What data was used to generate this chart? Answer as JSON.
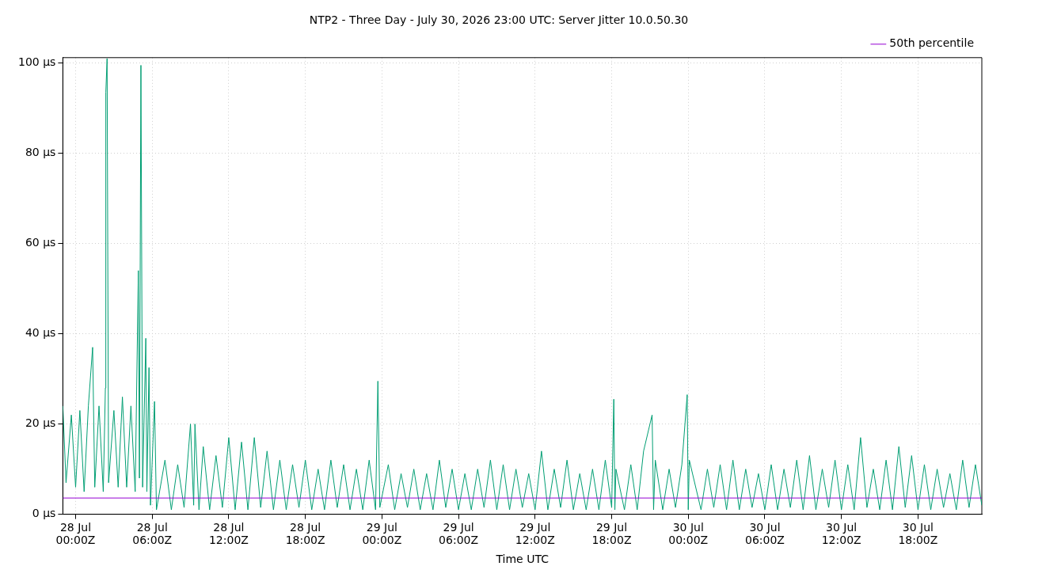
{
  "chart_data": {
    "type": "line",
    "title": "NTP2 - Three Day - July 30, 2026 23:00 UTC: Server Jitter 10.0.50.30",
    "xlabel": "Time UTC",
    "xlim": [
      "2026-07-27T23:00",
      "2026-07-30T23:00"
    ],
    "xticks": [
      {
        "value": "2026-07-28T00:00",
        "label": "28 Jul 00:00Z"
      },
      {
        "value": "2026-07-28T06:00",
        "label": "28 Jul 06:00Z"
      },
      {
        "value": "2026-07-28T12:00",
        "label": "28 Jul 12:00Z"
      },
      {
        "value": "2026-07-28T18:00",
        "label": "28 Jul 18:00Z"
      },
      {
        "value": "2026-07-29T00:00",
        "label": "29 Jul 00:00Z"
      },
      {
        "value": "2026-07-29T06:00",
        "label": "29 Jul 06:00Z"
      },
      {
        "value": "2026-07-29T12:00",
        "label": "29 Jul 12:00Z"
      },
      {
        "value": "2026-07-29T18:00",
        "label": "29 Jul 18:00Z"
      },
      {
        "value": "2026-07-30T00:00",
        "label": "30 Jul 00:00Z"
      },
      {
        "value": "2026-07-30T06:00",
        "label": "30 Jul 06:00Z"
      },
      {
        "value": "2026-07-30T12:00",
        "label": "30 Jul 12:00Z"
      },
      {
        "value": "2026-07-30T18:00",
        "label": "30 Jul 18:00Z"
      }
    ],
    "ylim": [
      0,
      101.2
    ],
    "yticks": [
      {
        "value": 0,
        "label": "0 µs"
      },
      {
        "value": 20,
        "label": "20 µs"
      },
      {
        "value": 40,
        "label": "40 µs"
      },
      {
        "value": 60,
        "label": "60 µs"
      },
      {
        "value": 80,
        "label": "80 µs"
      },
      {
        "value": 100,
        "label": "100 µs"
      }
    ],
    "grid": true,
    "legend": "top right",
    "marker": "none",
    "line_style": "solid",
    "series": [
      {
        "name": "50th percentile",
        "color": "#9400d3",
        "x": [
          "2026-07-27T23:00",
          "2026-07-30T23:00"
        ],
        "values": [
          3.6,
          3.6
        ]
      },
      {
        "color": "#009e73",
        "x": [
          "2026-07-27T23:00",
          "2026-07-27T23:15",
          "2026-07-27T23:40",
          "2026-07-28T00:00",
          "2026-07-28T00:20",
          "2026-07-28T00:40",
          "2026-07-28T01:00",
          "2026-07-28T01:20",
          "2026-07-28T01:30",
          "2026-07-28T01:50",
          "2026-07-28T02:10",
          "2026-07-28T02:20",
          "2026-07-28T02:22",
          "2026-07-28T02:28",
          "2026-07-28T02:35",
          "2026-07-28T03:00",
          "2026-07-28T03:20",
          "2026-07-28T03:40",
          "2026-07-28T04:00",
          "2026-07-28T04:20",
          "2026-07-28T04:40",
          "2026-07-28T04:55",
          "2026-07-28T05:00",
          "2026-07-28T05:07",
          "2026-07-28T05:15",
          "2026-07-28T05:30",
          "2026-07-28T05:35",
          "2026-07-28T05:45",
          "2026-07-28T05:52",
          "2026-07-28T06:11",
          "2026-07-28T06:20",
          "2026-07-28T07:00",
          "2026-07-28T07:30",
          "2026-07-28T08:00",
          "2026-07-28T08:30",
          "2026-07-28T09:00",
          "2026-07-28T09:15",
          "2026-07-28T09:21",
          "2026-07-28T09:40",
          "2026-07-28T10:00",
          "2026-07-28T10:30",
          "2026-07-28T11:00",
          "2026-07-28T11:30",
          "2026-07-28T12:00",
          "2026-07-28T12:30",
          "2026-07-28T13:00",
          "2026-07-28T13:30",
          "2026-07-28T14:00",
          "2026-07-28T14:30",
          "2026-07-28T15:00",
          "2026-07-28T15:30",
          "2026-07-28T16:00",
          "2026-07-28T16:30",
          "2026-07-28T17:00",
          "2026-07-28T17:30",
          "2026-07-28T18:00",
          "2026-07-28T18:30",
          "2026-07-28T19:00",
          "2026-07-28T19:30",
          "2026-07-28T20:00",
          "2026-07-28T20:30",
          "2026-07-28T21:00",
          "2026-07-28T21:30",
          "2026-07-28T22:00",
          "2026-07-28T22:30",
          "2026-07-28T23:00",
          "2026-07-28T23:30",
          "2026-07-28T23:41",
          "2026-07-28T23:50",
          "2026-07-29T00:30",
          "2026-07-29T01:00",
          "2026-07-29T01:30",
          "2026-07-29T02:00",
          "2026-07-29T02:30",
          "2026-07-29T03:00",
          "2026-07-29T03:30",
          "2026-07-29T04:00",
          "2026-07-29T04:30",
          "2026-07-29T05:00",
          "2026-07-29T05:30",
          "2026-07-29T06:00",
          "2026-07-29T06:30",
          "2026-07-29T07:00",
          "2026-07-29T07:30",
          "2026-07-29T08:00",
          "2026-07-29T08:30",
          "2026-07-29T09:00",
          "2026-07-29T09:30",
          "2026-07-29T10:00",
          "2026-07-29T10:30",
          "2026-07-29T11:00",
          "2026-07-29T11:30",
          "2026-07-29T12:00",
          "2026-07-29T12:30",
          "2026-07-29T13:00",
          "2026-07-29T13:30",
          "2026-07-29T14:00",
          "2026-07-29T14:30",
          "2026-07-29T15:00",
          "2026-07-29T15:30",
          "2026-07-29T16:00",
          "2026-07-29T16:30",
          "2026-07-29T17:00",
          "2026-07-29T17:30",
          "2026-07-29T18:00",
          "2026-07-29T18:10",
          "2026-07-29T18:15",
          "2026-07-29T18:20",
          "2026-07-29T19:00",
          "2026-07-29T19:30",
          "2026-07-29T20:00",
          "2026-07-29T20:30",
          "2026-07-29T21:10",
          "2026-07-29T21:17",
          "2026-07-29T21:25",
          "2026-07-29T22:00",
          "2026-07-29T22:30",
          "2026-07-29T23:00",
          "2026-07-29T23:30",
          "2026-07-29T23:55",
          "2026-07-30T00:00",
          "2026-07-30T00:05",
          "2026-07-30T01:00",
          "2026-07-30T01:30",
          "2026-07-30T02:00",
          "2026-07-30T02:30",
          "2026-07-30T03:00",
          "2026-07-30T03:30",
          "2026-07-30T04:00",
          "2026-07-30T04:30",
          "2026-07-30T05:00",
          "2026-07-30T05:30",
          "2026-07-30T06:00",
          "2026-07-30T06:30",
          "2026-07-30T07:00",
          "2026-07-30T07:30",
          "2026-07-30T08:00",
          "2026-07-30T08:30",
          "2026-07-30T09:00",
          "2026-07-30T09:30",
          "2026-07-30T10:00",
          "2026-07-30T10:30",
          "2026-07-30T11:00",
          "2026-07-30T11:30",
          "2026-07-30T12:00",
          "2026-07-30T12:30",
          "2026-07-30T13:00",
          "2026-07-30T13:30",
          "2026-07-30T14:00",
          "2026-07-30T14:30",
          "2026-07-30T15:00",
          "2026-07-30T15:30",
          "2026-07-30T16:00",
          "2026-07-30T16:30",
          "2026-07-30T17:00",
          "2026-07-30T17:30",
          "2026-07-30T18:00",
          "2026-07-30T18:30",
          "2026-07-30T19:00",
          "2026-07-30T19:30",
          "2026-07-30T20:00",
          "2026-07-30T20:30",
          "2026-07-30T21:00",
          "2026-07-30T21:30",
          "2026-07-30T22:00",
          "2026-07-30T22:30",
          "2026-07-30T23:00"
        ],
        "values": [
          24,
          7,
          22,
          6,
          23,
          5,
          24,
          37,
          6,
          24,
          5,
          28,
          93.5,
          101,
          7,
          23,
          6,
          26,
          6,
          24,
          5,
          54,
          8,
          99.5,
          6,
          39,
          5,
          32.5,
          2,
          25,
          1,
          12,
          1,
          11,
          1.5,
          20,
          2,
          20,
          1,
          15,
          1,
          13,
          1.5,
          17,
          1,
          16,
          1,
          17,
          1.5,
          14,
          1,
          12,
          1,
          11,
          1.5,
          12,
          1,
          10,
          1,
          12,
          1.5,
          11,
          1,
          10,
          1,
          12,
          1,
          29.5,
          1.5,
          11,
          1,
          9,
          1.5,
          10,
          1,
          9,
          1,
          12,
          1.5,
          10,
          1,
          9,
          1,
          10,
          1.5,
          12,
          1,
          11,
          1,
          10,
          1.5,
          9,
          1,
          14,
          1,
          10,
          1.5,
          12,
          1,
          9,
          1,
          10,
          1,
          12,
          1.5,
          25.5,
          1,
          10,
          1,
          11,
          1,
          14,
          22,
          1,
          12,
          1,
          10,
          1.5,
          11,
          26.5,
          1,
          12,
          1,
          10,
          1.5,
          11,
          1,
          12,
          1,
          10,
          1.5,
          9,
          1,
          11,
          1,
          10,
          1.5,
          12,
          1,
          13,
          1,
          10,
          1.5,
          12,
          1,
          11,
          1,
          17,
          1.5,
          10,
          1,
          12,
          1,
          15,
          1.5,
          13,
          1,
          11,
          1,
          10,
          1.5,
          9,
          1,
          12,
          1.5,
          11,
          2
        ]
      }
    ]
  }
}
